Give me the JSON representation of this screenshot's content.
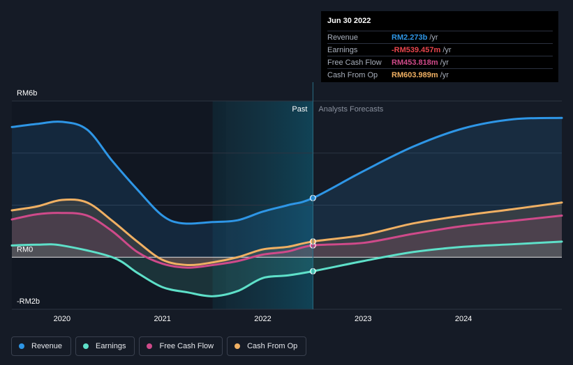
{
  "chart_data": {
    "type": "line",
    "y_axis": {
      "labels": [
        "RM6b",
        "RM0",
        "-RM2b"
      ],
      "ylim": [
        -2,
        6
      ],
      "grid": true,
      "units": "RM billions"
    },
    "x_axis": {
      "ticks": [
        "2020",
        "2021",
        "2022",
        "2023",
        "2024"
      ],
      "xlim": [
        2019.5,
        2024.98
      ]
    },
    "periods": {
      "past": "Past",
      "forecast": "Analysts Forecasts",
      "divider_x": 2022.5
    },
    "series": [
      {
        "name": "Revenue",
        "color": "#2e96e6",
        "points": [
          [
            2019.5,
            5.0
          ],
          [
            2019.75,
            5.12
          ],
          [
            2020.0,
            5.2
          ],
          [
            2020.25,
            4.9
          ],
          [
            2020.5,
            3.7
          ],
          [
            2020.75,
            2.6
          ],
          [
            2021.0,
            1.6
          ],
          [
            2021.2,
            1.3
          ],
          [
            2021.5,
            1.35
          ],
          [
            2021.75,
            1.42
          ],
          [
            2022.0,
            1.75
          ],
          [
            2022.25,
            2.0
          ],
          [
            2022.5,
            2.273
          ],
          [
            2023.0,
            3.3
          ],
          [
            2023.5,
            4.25
          ],
          [
            2024.0,
            4.95
          ],
          [
            2024.5,
            5.3
          ],
          [
            2024.98,
            5.35
          ]
        ]
      },
      {
        "name": "Earnings",
        "color": "#5ee0c9",
        "points": [
          [
            2019.5,
            0.45
          ],
          [
            2019.75,
            0.48
          ],
          [
            2020.0,
            0.45
          ],
          [
            2020.5,
            0.0
          ],
          [
            2020.75,
            -0.6
          ],
          [
            2021.0,
            -1.15
          ],
          [
            2021.25,
            -1.35
          ],
          [
            2021.5,
            -1.5
          ],
          [
            2021.75,
            -1.3
          ],
          [
            2022.0,
            -0.8
          ],
          [
            2022.25,
            -0.7
          ],
          [
            2022.5,
            -0.539
          ],
          [
            2023.0,
            -0.15
          ],
          [
            2023.5,
            0.2
          ],
          [
            2024.0,
            0.4
          ],
          [
            2024.5,
            0.5
          ],
          [
            2024.98,
            0.6
          ]
        ]
      },
      {
        "name": "Free Cash Flow",
        "color": "#cf4a8a",
        "points": [
          [
            2019.5,
            1.45
          ],
          [
            2019.75,
            1.65
          ],
          [
            2020.0,
            1.7
          ],
          [
            2020.25,
            1.6
          ],
          [
            2020.5,
            1.0
          ],
          [
            2020.75,
            0.2
          ],
          [
            2021.0,
            -0.25
          ],
          [
            2021.25,
            -0.4
          ],
          [
            2021.5,
            -0.3
          ],
          [
            2021.75,
            -0.15
          ],
          [
            2022.0,
            0.1
          ],
          [
            2022.25,
            0.22
          ],
          [
            2022.5,
            0.454
          ],
          [
            2023.0,
            0.55
          ],
          [
            2023.5,
            0.9
          ],
          [
            2024.0,
            1.2
          ],
          [
            2024.5,
            1.4
          ],
          [
            2024.98,
            1.6
          ]
        ]
      },
      {
        "name": "Cash From Op",
        "color": "#f0b063",
        "points": [
          [
            2019.5,
            1.8
          ],
          [
            2019.75,
            1.95
          ],
          [
            2020.0,
            2.2
          ],
          [
            2020.25,
            2.1
          ],
          [
            2020.5,
            1.4
          ],
          [
            2020.75,
            0.6
          ],
          [
            2021.0,
            -0.1
          ],
          [
            2021.25,
            -0.3
          ],
          [
            2021.5,
            -0.2
          ],
          [
            2021.75,
            0.0
          ],
          [
            2022.0,
            0.3
          ],
          [
            2022.25,
            0.4
          ],
          [
            2022.5,
            0.604
          ],
          [
            2023.0,
            0.85
          ],
          [
            2023.5,
            1.3
          ],
          [
            2024.0,
            1.6
          ],
          [
            2024.5,
            1.85
          ],
          [
            2024.98,
            2.1
          ]
        ]
      }
    ]
  },
  "tooltip": {
    "date": "Jun 30 2022",
    "rows": [
      {
        "label": "Revenue",
        "value": "RM2.273b",
        "unit": "/yr",
        "color": "#2e96e6"
      },
      {
        "label": "Earnings",
        "value": "-RM539.457m",
        "unit": "/yr",
        "color": "#e8454c"
      },
      {
        "label": "Free Cash Flow",
        "value": "RM453.818m",
        "unit": "/yr",
        "color": "#cf4a8a"
      },
      {
        "label": "Cash From Op",
        "value": "RM603.989m",
        "unit": "/yr",
        "color": "#f0b063"
      }
    ]
  },
  "legend": [
    {
      "label": "Revenue",
      "color": "#2e96e6"
    },
    {
      "label": "Earnings",
      "color": "#5ee0c9"
    },
    {
      "label": "Free Cash Flow",
      "color": "#cf4a8a"
    },
    {
      "label": "Cash From Op",
      "color": "#f0b063"
    }
  ]
}
